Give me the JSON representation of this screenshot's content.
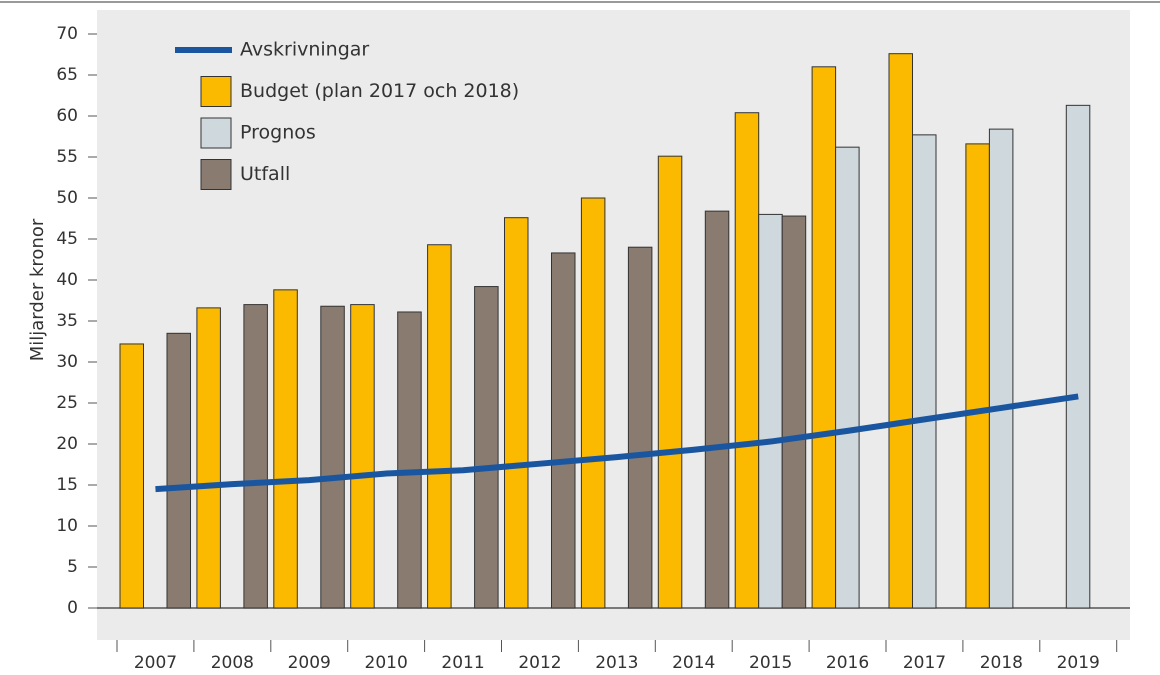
{
  "chart_data": {
    "type": "bar",
    "y_label": "Miljarder kronor",
    "categories": [
      "2007",
      "2008",
      "2009",
      "2010",
      "2011",
      "2012",
      "2013",
      "2014",
      "2015",
      "2016",
      "2017",
      "2018",
      "2019"
    ],
    "series": [
      {
        "name": "Avskrivningar",
        "type": "line",
        "color": "#1a56a0",
        "values": [
          14.5,
          15.1,
          15.6,
          16.4,
          16.8,
          17.6,
          18.4,
          19.3,
          20.3,
          21.6,
          23.0,
          24.4,
          25.8
        ]
      },
      {
        "name": "Budget (plan 2017 och 2018)",
        "type": "bar",
        "color": "#fbb900",
        "values": [
          32.2,
          36.6,
          38.8,
          37.0,
          44.3,
          47.6,
          50.0,
          55.1,
          60.4,
          66.0,
          67.6,
          56.6,
          null
        ]
      },
      {
        "name": "Prognos",
        "type": "bar",
        "color": "#cfd8dc",
        "values": [
          null,
          null,
          null,
          null,
          null,
          null,
          null,
          null,
          48.0,
          56.2,
          57.7,
          58.4,
          61.3
        ]
      },
      {
        "name": "Utfall",
        "type": "bar",
        "color": "#8a7b70",
        "values": [
          33.5,
          37.0,
          36.8,
          36.1,
          39.2,
          43.3,
          44.0,
          48.4,
          47.8,
          null,
          null,
          null,
          null
        ]
      }
    ],
    "ylim": [
      0,
      70
    ],
    "yticks": [
      0,
      5,
      10,
      15,
      20,
      25,
      30,
      35,
      40,
      45,
      50,
      55,
      60,
      65,
      70
    ],
    "grid": false
  }
}
